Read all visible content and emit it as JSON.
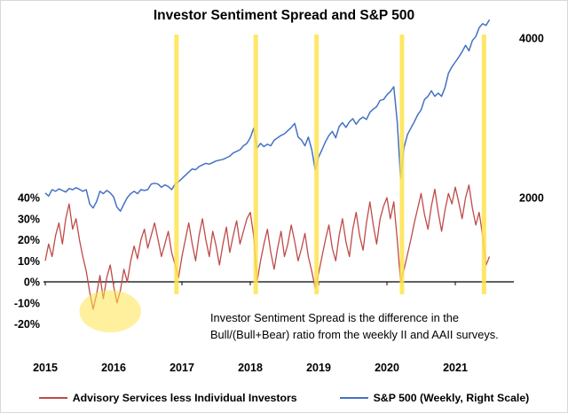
{
  "chart_data": {
    "type": "line",
    "title": "Investor Sentiment Spread and S&P 500",
    "x_start": 2015.0,
    "x_step": 0.05,
    "x_axis_ticks": [
      2015,
      2016,
      2017,
      2018,
      2019,
      2020,
      2021
    ],
    "left_axis": {
      "ticks": [
        "40%",
        "30%",
        "20%",
        "10%",
        "0%",
        "-10%",
        "-20%"
      ],
      "tick_values": [
        40,
        30,
        20,
        10,
        0,
        -10,
        -20
      ],
      "range": [
        -20,
        48
      ]
    },
    "right_axis": {
      "ticks": [
        "4000",
        "2000"
      ],
      "tick_values": [
        4000,
        2000
      ],
      "range": [
        1800,
        4400
      ]
    },
    "series": [
      {
        "name": "Advisory Services less Individual Investors",
        "axis": "left",
        "color": "#BE4B48",
        "values": [
          10,
          18,
          12,
          22,
          28,
          18,
          30,
          37,
          25,
          30,
          20,
          12,
          5,
          -5,
          -13,
          -6,
          3,
          -8,
          2,
          8,
          -2,
          -10,
          -4,
          6,
          0,
          10,
          17,
          11,
          20,
          25,
          16,
          22,
          28,
          20,
          12,
          18,
          24,
          14,
          8,
          2,
          12,
          20,
          28,
          18,
          10,
          22,
          30,
          20,
          12,
          24,
          17,
          8,
          18,
          26,
          14,
          22,
          29,
          18,
          24,
          30,
          33,
          22,
          0,
          10,
          18,
          25,
          14,
          6,
          16,
          24,
          12,
          18,
          27,
          19,
          10,
          16,
          23,
          12,
          5,
          -3,
          4,
          12,
          20,
          27,
          16,
          10,
          22,
          30,
          19,
          12,
          25,
          33,
          22,
          15,
          28,
          38,
          27,
          18,
          30,
          36,
          40,
          30,
          38,
          20,
          0,
          6,
          13,
          20,
          28,
          35,
          42,
          32,
          25,
          36,
          44,
          33,
          24,
          34,
          42,
          37,
          45,
          38,
          30,
          40,
          46,
          35,
          27,
          33,
          22,
          8,
          12
        ]
      },
      {
        "name": "S&P 500 (Weekly, Right Scale)",
        "axis": "right",
        "color": "#4472C4",
        "values": [
          2058,
          2020,
          2100,
          2080,
          2110,
          2090,
          2070,
          2115,
          2100,
          2125,
          2105,
          2080,
          2100,
          1920,
          1870,
          1950,
          2080,
          2050,
          2090,
          2060,
          2010,
          1880,
          1830,
          1920,
          2000,
          2050,
          2080,
          2050,
          2100,
          2090,
          2100,
          2170,
          2180,
          2170,
          2130,
          2160,
          2140,
          2100,
          2170,
          2200,
          2240,
          2280,
          2320,
          2360,
          2350,
          2390,
          2410,
          2430,
          2420,
          2440,
          2460,
          2470,
          2480,
          2500,
          2520,
          2560,
          2580,
          2600,
          2650,
          2680,
          2750,
          2870,
          2620,
          2680,
          2640,
          2670,
          2650,
          2720,
          2750,
          2780,
          2800,
          2840,
          2880,
          2930,
          2760,
          2720,
          2650,
          2760,
          2600,
          2350,
          2510,
          2600,
          2700,
          2780,
          2830,
          2750,
          2890,
          2940,
          2880,
          2950,
          2990,
          2920,
          2980,
          3010,
          2980,
          3070,
          3110,
          3140,
          3220,
          3230,
          3290,
          3330,
          3390,
          2950,
          2237,
          2630,
          2790,
          2870,
          2950,
          3040,
          3100,
          3230,
          3270,
          3340,
          3270,
          3310,
          3270,
          3380,
          3560,
          3640,
          3700,
          3760,
          3830,
          3910,
          3840,
          3970,
          4020,
          4130,
          4180,
          4160,
          4230
        ]
      }
    ],
    "highlights": {
      "color": "#FFE34D",
      "vertical_bands": [
        2016.92,
        2018.08,
        2018.97,
        2020.22,
        2021.42
      ],
      "ellipse": {
        "x": 2015.95,
        "y": -14,
        "rx": 0.45,
        "ry": 10
      }
    },
    "annotation": {
      "line1": "Investor Sentiment Spread is the difference in the",
      "line2": "Bull/(Bull+Bear) ratio from the weekly II and AAII surveys."
    },
    "legend": [
      {
        "label": "Advisory Services less Individual Investors",
        "color": "#BE4B48"
      },
      {
        "label": "S&P 500 (Weekly, Right Scale)",
        "color": "#4472C4"
      }
    ]
  }
}
